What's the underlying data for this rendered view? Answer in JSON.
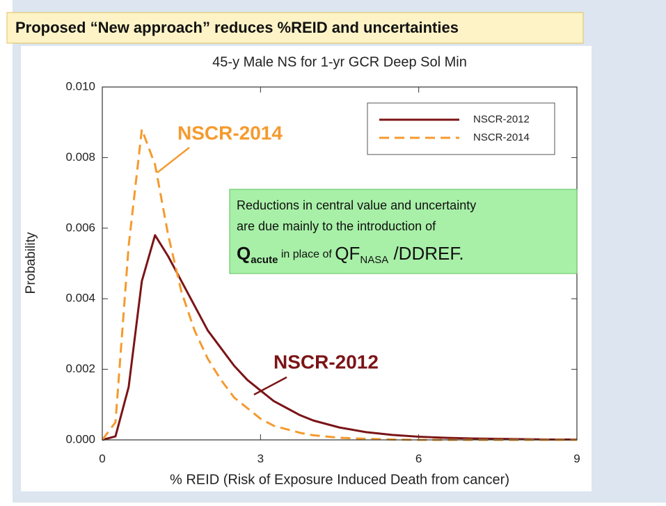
{
  "header": {
    "title": "Proposed “New approach” reduces %REID and uncertainties"
  },
  "chart_data": {
    "type": "line",
    "title": "45-y Male NS for 1-yr GCR Deep Sol Min",
    "x_label": "% REID (Risk of Exposure Induced Death from cancer)",
    "y_label": "Probability",
    "x": [
      0,
      0.25,
      0.5,
      0.75,
      1,
      1.25,
      1.5,
      1.75,
      2,
      2.25,
      2.5,
      2.75,
      3,
      3.25,
      3.5,
      3.75,
      4,
      4.5,
      5,
      5.5,
      6,
      6.5,
      7,
      7.5,
      8,
      8.5,
      9
    ],
    "series": [
      {
        "name": "NSCR-2012",
        "color": "#7b1416",
        "dash": false,
        "values": [
          0,
          0.0001,
          0.0015,
          0.0045,
          0.0058,
          0.0052,
          0.0045,
          0.0038,
          0.0031,
          0.0026,
          0.0021,
          0.0017,
          0.0014,
          0.0011,
          0.0009,
          0.0007,
          0.00055,
          0.00035,
          0.00022,
          0.00014,
          9e-05,
          6e-05,
          4e-05,
          3e-05,
          2e-05,
          1e-05,
          1e-05
        ]
      },
      {
        "name": "NSCR-2014",
        "color": "#f59a2d",
        "dash": true,
        "values": [
          0,
          0.0005,
          0.0055,
          0.0088,
          0.0078,
          0.0058,
          0.0042,
          0.0031,
          0.0023,
          0.0017,
          0.0012,
          0.0009,
          0.0006,
          0.0004,
          0.0003,
          0.0002,
          0.00013,
          6e-05,
          3e-05,
          1e-05,
          0,
          0,
          0,
          0,
          0,
          0,
          0
        ]
      }
    ],
    "xlim": [
      0,
      9
    ],
    "ylim": [
      0,
      0.01
    ],
    "xticks": [
      0,
      3,
      6,
      9
    ],
    "yticks": [
      {
        "value": 0,
        "label": "0.000"
      },
      {
        "value": 0.002,
        "label": "0.002"
      },
      {
        "value": 0.004,
        "label": "0.004"
      },
      {
        "value": 0.006,
        "label": "0.006"
      },
      {
        "value": 0.008,
        "label": "0.008"
      },
      {
        "value": 0.01,
        "label": "0.010"
      }
    ],
    "legend": "upper right",
    "annotations": [
      {
        "text": "NSCR-2014",
        "color": "#f59a2d"
      },
      {
        "text": "NSCR-2012",
        "color": "#7b1416"
      }
    ],
    "note": {
      "lines": [
        "Reductions in central value and uncertainty",
        "are due mainly to the  introduction of"
      ],
      "formula": {
        "q": "Q",
        "q_sub": "acute",
        "middle": " in place of ",
        "qf": "QF",
        "qf_sub": "NASA",
        "tail": " /DDREF."
      }
    }
  }
}
